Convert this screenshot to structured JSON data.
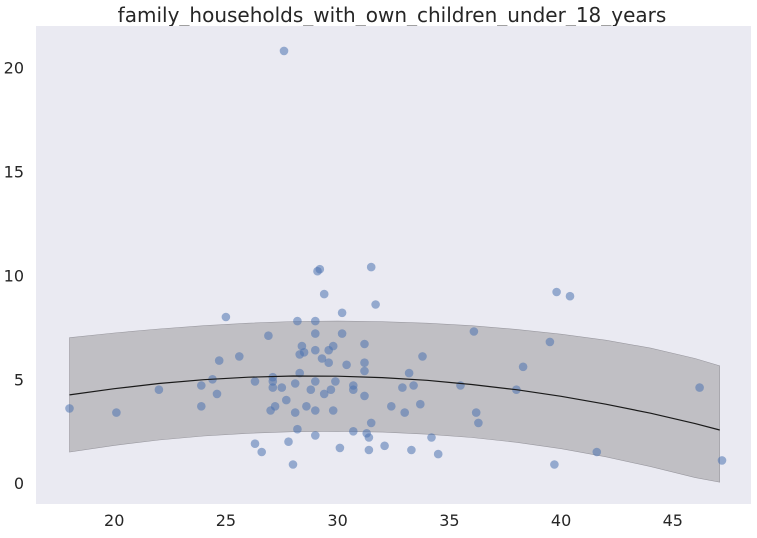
{
  "chart_data": {
    "type": "scatter",
    "title": "family_households_with_own_children_under_18_years",
    "xlabel": "",
    "ylabel": "",
    "xlim": [
      16.5,
      48.5
    ],
    "ylim": [
      -1.0,
      22.0
    ],
    "xticks": [
      20,
      25,
      30,
      35,
      40,
      45
    ],
    "yticks": [
      0,
      5,
      10,
      15,
      20
    ],
    "grid": false,
    "colors": {
      "background": "#eaeaf2",
      "points": "#4c72b0",
      "band": "#b8b7bc",
      "line": "#1a1a1a"
    },
    "points": [
      [
        18.0,
        3.6
      ],
      [
        20.1,
        3.4
      ],
      [
        22.0,
        4.5
      ],
      [
        23.9,
        4.7
      ],
      [
        23.9,
        3.7
      ],
      [
        24.4,
        5.0
      ],
      [
        24.6,
        4.3
      ],
      [
        24.7,
        5.9
      ],
      [
        25.0,
        8.0
      ],
      [
        25.6,
        6.1
      ],
      [
        26.3,
        4.9
      ],
      [
        26.3,
        1.9
      ],
      [
        26.6,
        1.5
      ],
      [
        26.9,
        7.1
      ],
      [
        27.0,
        3.5
      ],
      [
        27.1,
        4.6
      ],
      [
        27.1,
        4.9
      ],
      [
        27.1,
        5.1
      ],
      [
        27.2,
        3.7
      ],
      [
        27.5,
        4.6
      ],
      [
        27.6,
        20.8
      ],
      [
        27.7,
        4.0
      ],
      [
        27.8,
        2.0
      ],
      [
        28.0,
        0.9
      ],
      [
        28.1,
        3.4
      ],
      [
        28.1,
        4.8
      ],
      [
        28.2,
        2.6
      ],
      [
        28.2,
        7.8
      ],
      [
        28.3,
        6.2
      ],
      [
        28.3,
        5.3
      ],
      [
        28.4,
        6.6
      ],
      [
        28.5,
        6.3
      ],
      [
        28.6,
        3.7
      ],
      [
        28.8,
        4.5
      ],
      [
        29.0,
        7.8
      ],
      [
        29.0,
        7.2
      ],
      [
        29.0,
        6.4
      ],
      [
        29.0,
        4.9
      ],
      [
        29.0,
        3.5
      ],
      [
        29.0,
        2.3
      ],
      [
        29.1,
        10.2
      ],
      [
        29.2,
        10.3
      ],
      [
        29.3,
        6.0
      ],
      [
        29.4,
        9.1
      ],
      [
        29.4,
        4.3
      ],
      [
        29.6,
        5.8
      ],
      [
        29.6,
        6.4
      ],
      [
        29.7,
        4.5
      ],
      [
        29.8,
        6.6
      ],
      [
        29.8,
        3.5
      ],
      [
        29.9,
        4.9
      ],
      [
        30.1,
        1.7
      ],
      [
        30.2,
        8.2
      ],
      [
        30.2,
        7.2
      ],
      [
        30.4,
        5.7
      ],
      [
        30.7,
        4.5
      ],
      [
        30.7,
        4.7
      ],
      [
        30.7,
        2.5
      ],
      [
        31.2,
        6.7
      ],
      [
        31.2,
        5.8
      ],
      [
        31.2,
        5.4
      ],
      [
        31.2,
        4.2
      ],
      [
        31.3,
        2.4
      ],
      [
        31.4,
        2.2
      ],
      [
        31.4,
        1.6
      ],
      [
        31.5,
        2.9
      ],
      [
        31.5,
        10.4
      ],
      [
        31.7,
        8.6
      ],
      [
        32.1,
        1.8
      ],
      [
        32.4,
        3.7
      ],
      [
        32.9,
        4.6
      ],
      [
        33.0,
        3.4
      ],
      [
        33.2,
        5.3
      ],
      [
        33.3,
        1.6
      ],
      [
        33.4,
        4.7
      ],
      [
        33.7,
        3.8
      ],
      [
        33.8,
        6.1
      ],
      [
        34.2,
        2.2
      ],
      [
        34.5,
        1.4
      ],
      [
        35.5,
        4.7
      ],
      [
        36.1,
        7.3
      ],
      [
        36.2,
        3.4
      ],
      [
        36.3,
        2.9
      ],
      [
        38.0,
        4.5
      ],
      [
        38.3,
        5.6
      ],
      [
        39.5,
        6.8
      ],
      [
        39.7,
        0.9
      ],
      [
        39.8,
        9.2
      ],
      [
        40.4,
        9.0
      ],
      [
        41.6,
        1.5
      ],
      [
        46.2,
        4.6
      ],
      [
        47.2,
        1.1
      ]
    ],
    "fit": {
      "x": [
        18.0,
        20.0,
        22.0,
        24.0,
        26.0,
        28.0,
        30.0,
        32.0,
        34.0,
        36.0,
        38.0,
        40.0,
        42.0,
        44.0,
        46.0,
        47.1
      ],
      "y": [
        4.25,
        4.55,
        4.8,
        4.98,
        5.1,
        5.16,
        5.15,
        5.08,
        4.95,
        4.75,
        4.5,
        4.18,
        3.8,
        3.37,
        2.87,
        2.56
      ],
      "upper": [
        7.0,
        7.23,
        7.42,
        7.58,
        7.7,
        7.78,
        7.8,
        7.77,
        7.7,
        7.58,
        7.4,
        7.17,
        6.88,
        6.5,
        6.0,
        5.65
      ],
      "lower": [
        1.5,
        1.82,
        2.08,
        2.27,
        2.4,
        2.48,
        2.5,
        2.46,
        2.36,
        2.2,
        1.97,
        1.66,
        1.27,
        0.8,
        0.27,
        0.05
      ]
    }
  }
}
